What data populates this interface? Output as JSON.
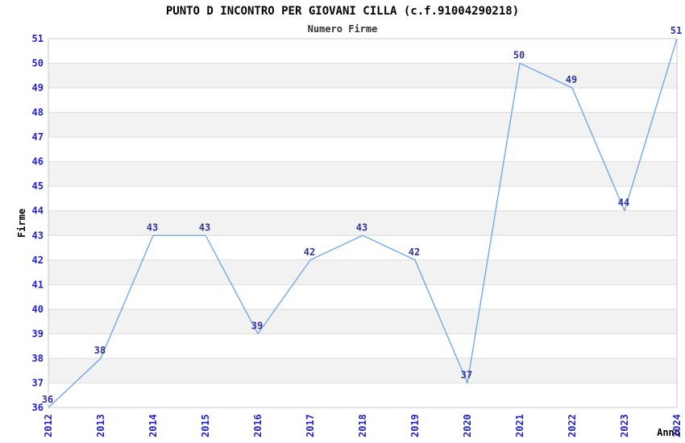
{
  "chart_data": {
    "type": "line",
    "title": "PUNTO D INCONTRO PER GIOVANI CILLA (c.f.91004290218)",
    "subtitle": "Numero Firme",
    "xlabel": "Anno",
    "ylabel": "Firme",
    "categories": [
      "2012",
      "2013",
      "2014",
      "2015",
      "2016",
      "2017",
      "2018",
      "2019",
      "2020",
      "2021",
      "2022",
      "2023",
      "2024"
    ],
    "values": [
      36,
      38,
      43,
      43,
      39,
      42,
      43,
      42,
      37,
      50,
      49,
      44,
      51
    ],
    "ylim": [
      36,
      51
    ],
    "ytick_step": 1,
    "grid": true,
    "background_bands": "alternating",
    "legend_position": "none",
    "x_tick_rotation": -90,
    "colors": {
      "line": "#74a9e3",
      "value_labels": "#34349b",
      "tick_labels": "#2222cc",
      "grid": "#dedede",
      "band": "#f2f2f2",
      "plot_border": "#c9c9c9",
      "title": "#000000",
      "subtitle": "#333333",
      "axis_labels": "#000000",
      "plot_background": "#ffffff"
    }
  }
}
